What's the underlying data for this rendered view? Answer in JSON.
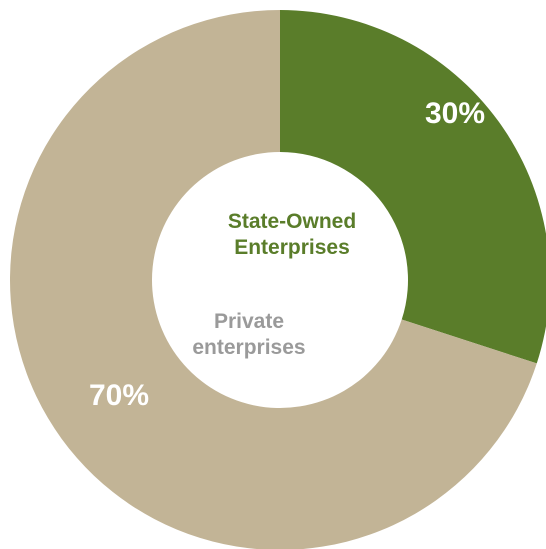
{
  "chart_data": {
    "type": "pie",
    "donut": true,
    "slices": [
      {
        "name_lines": [
          "State-Owned",
          "Enterprises"
        ],
        "value": 30,
        "label": "30%",
        "color": "#5a7d2a",
        "label_color": "#5a7d2a"
      },
      {
        "name_lines": [
          "Private",
          "enterprises"
        ],
        "value": 70,
        "label": "70%",
        "color": "#c2b496",
        "label_color": "#9a9a9a"
      }
    ],
    "legend": "inside-center"
  }
}
